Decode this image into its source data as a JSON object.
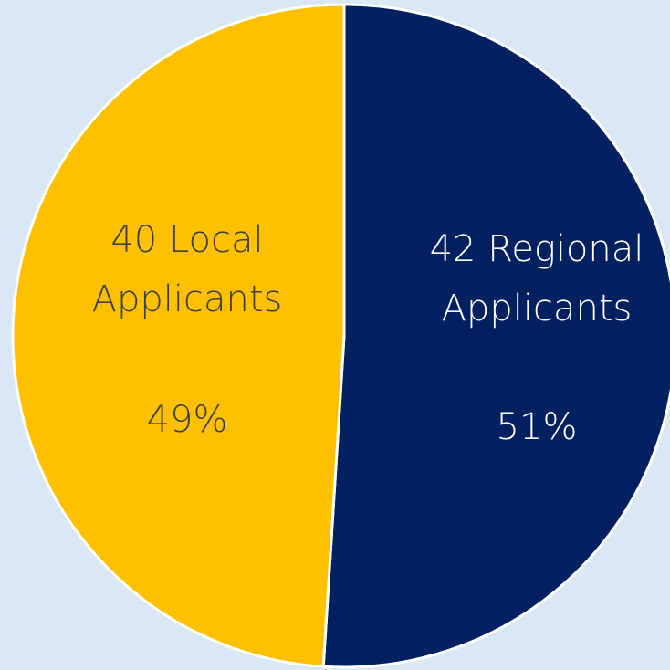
{
  "chart_data": {
    "type": "pie",
    "categories": [
      "42 Regional Applicants",
      "40 Local Applicants"
    ],
    "values": [
      51,
      49
    ],
    "value_labels": [
      "51%",
      "49%"
    ],
    "colors": [
      "#002060",
      "#ffc000"
    ]
  }
}
